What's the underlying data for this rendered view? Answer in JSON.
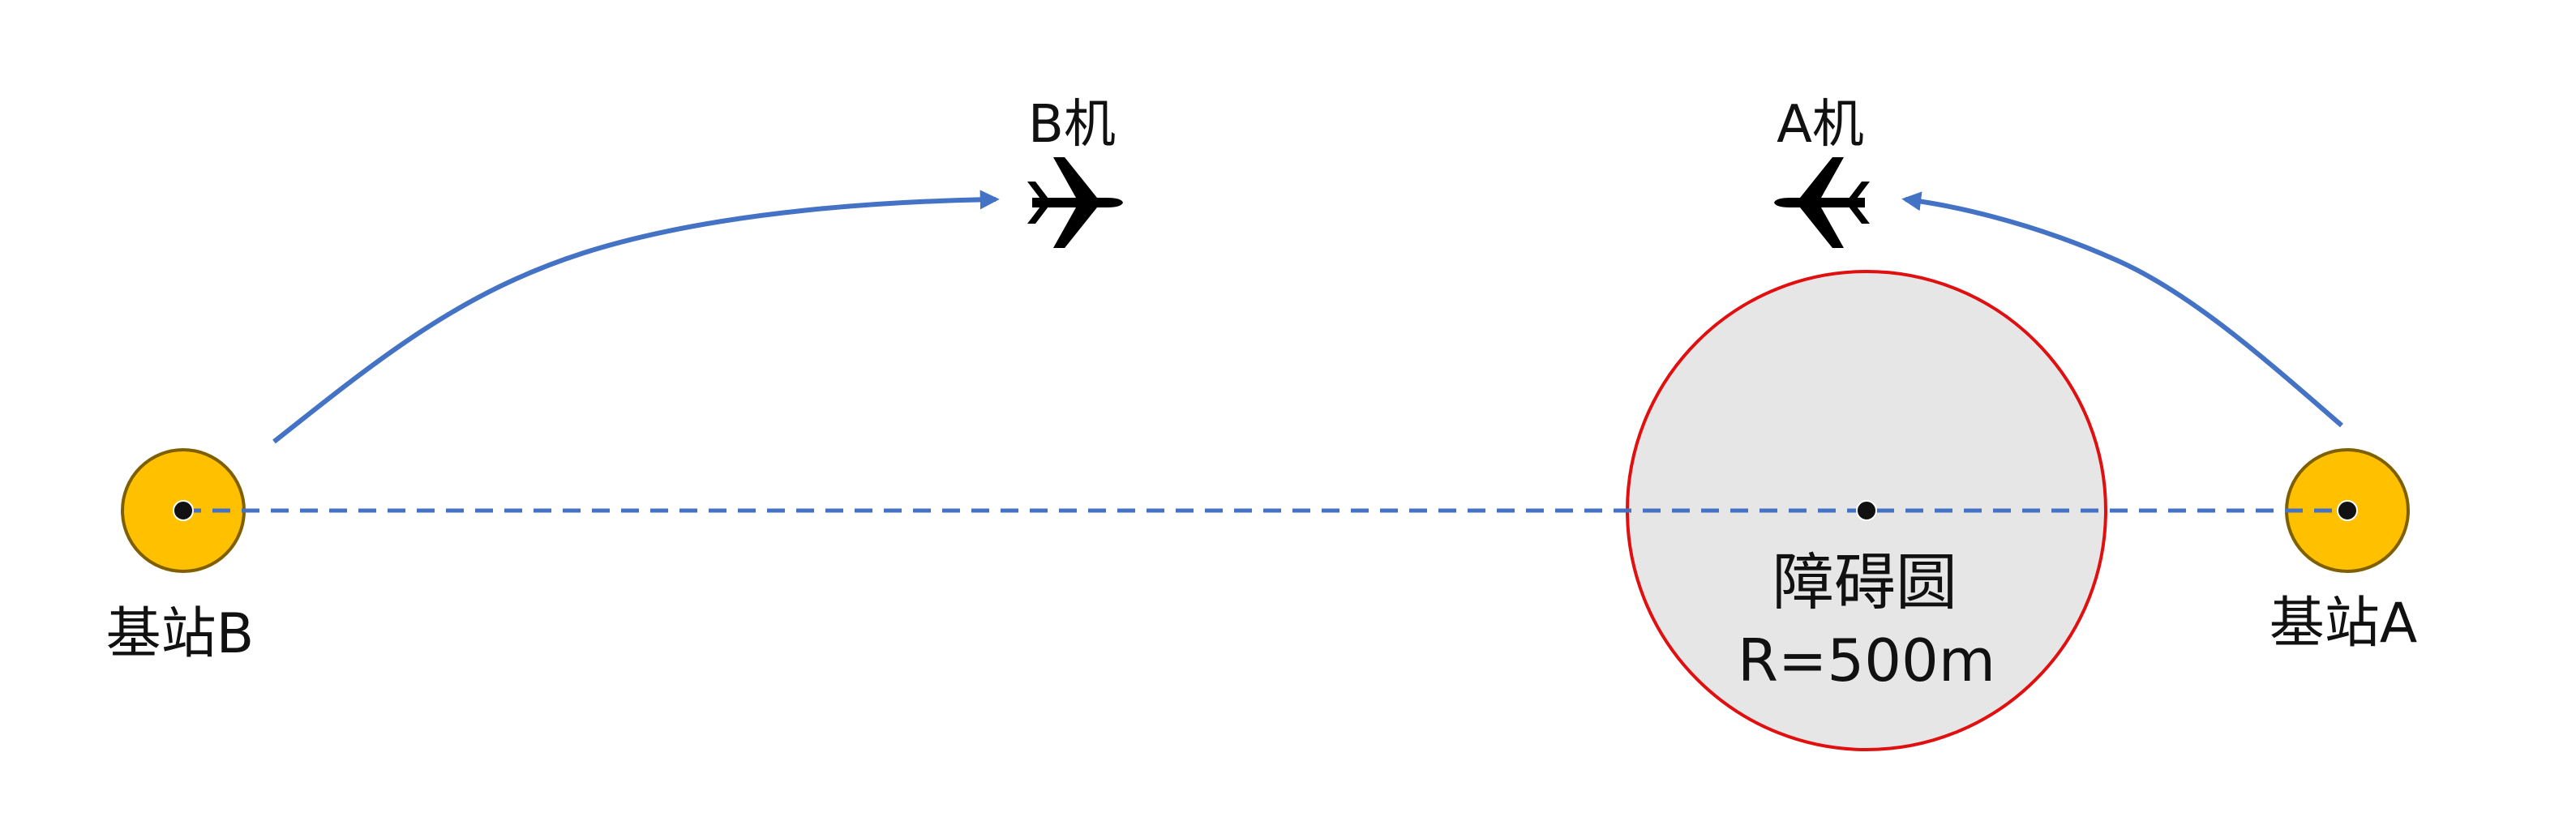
{
  "base_station_b": {
    "label": "基站B"
  },
  "base_station_a": {
    "label": "基站A"
  },
  "plane_b": {
    "label": "B机"
  },
  "plane_a": {
    "label": "A机"
  },
  "obstacle": {
    "name": "障碍圆",
    "radius_label": "R=500m"
  },
  "colors": {
    "station_fill": "#FFC000",
    "station_stroke": "#7F6000",
    "obstacle_fill": "#E7E6E6",
    "obstacle_stroke": "#E01010",
    "path_line": "#4472C4",
    "plane": "#000000"
  }
}
